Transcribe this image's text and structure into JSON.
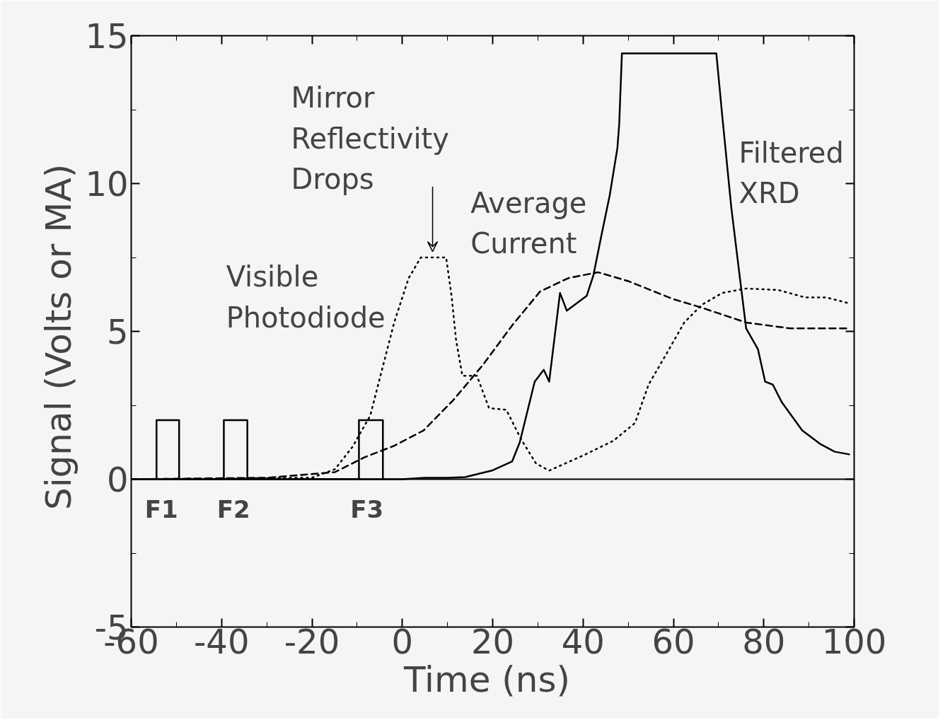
{
  "chart_data": {
    "type": "line",
    "xlabel": "Time  (ns)",
    "ylabel": "Signal  (Volts or MA)",
    "xlim": [
      -60,
      100
    ],
    "ylim": [
      -5,
      15
    ],
    "xticks": [
      -60,
      -40,
      -20,
      0,
      20,
      40,
      60,
      80,
      100
    ],
    "yticks": [
      -5,
      0,
      5,
      10,
      15
    ],
    "grid": false,
    "marker": "none",
    "series": [
      {
        "color": "#000000",
        "line_style": "solid",
        "x": [
          -60,
          -40,
          -20,
          0,
          5,
          10,
          13.9,
          20,
          24.3,
          26,
          29.3,
          31.3,
          32.5,
          34.9,
          36.4,
          40.8,
          42.3,
          44,
          45.9,
          47.6,
          48,
          48.6,
          69.5,
          70.8,
          72.8,
          74.8,
          76.1,
          78.7,
          80.3,
          82,
          84,
          88.5,
          92.4,
          95.7,
          98.9
        ],
        "values": [
          0,
          0,
          0,
          0,
          0.05,
          0.05,
          0.07,
          0.3,
          0.6,
          1.25,
          3.3,
          3.7,
          3.3,
          6.3,
          5.7,
          6.2,
          6.9,
          8.2,
          9.6,
          11.2,
          12,
          14.4,
          14.4,
          12.3,
          9.2,
          6.7,
          5.1,
          4.4,
          3.3,
          3.2,
          2.6,
          1.65,
          1.2,
          0.93,
          0.84
        ]
      },
      {
        "color": "#000000",
        "line_style": "dashed",
        "x": [
          -60,
          -30,
          -14.9,
          -8.4,
          -1.8,
          4.7,
          11.2,
          17.8,
          24.3,
          30.5,
          36.7,
          43.3,
          50,
          59.8,
          66.3,
          76.1,
          85.9,
          98.3
        ],
        "values": [
          0,
          0.05,
          0.24,
          0.74,
          1.13,
          1.65,
          2.66,
          3.86,
          5.2,
          6.35,
          6.8,
          7,
          6.7,
          6.1,
          5.8,
          5.3,
          5.1,
          5.1
        ]
      },
      {
        "color": "#000000",
        "line_style": "dotted",
        "x": [
          -60,
          -20,
          -14.9,
          -11,
          -7.1,
          -4.5,
          -1.8,
          1.4,
          4.1,
          6.7,
          9.7,
          10.9,
          11.9,
          13.3,
          16.5,
          19.2,
          23,
          26.3,
          29.6,
          32.5,
          40,
          46.7,
          51.5,
          54.5,
          58.3,
          62.4,
          66.3,
          70.8,
          76.1,
          83.2,
          89.1,
          93.8,
          98.9
        ],
        "values": [
          0,
          0.05,
          0.34,
          1.1,
          2.15,
          3.7,
          5.3,
          6.8,
          7.5,
          7.5,
          7.5,
          6.2,
          4.7,
          3.5,
          3.5,
          2.4,
          2.35,
          1.35,
          0.53,
          0.29,
          0.8,
          1.3,
          1.9,
          3.2,
          4.2,
          5.3,
          5.9,
          6.3,
          6.45,
          6.4,
          6.15,
          6.15,
          5.95
        ]
      },
      {
        "color": "#000000",
        "line_style": "solid",
        "x": [
          -54.4,
          -54.4,
          -49.4,
          -49.4,
          -39.5,
          -39.5,
          -34.3,
          -34.3,
          -9.6,
          -9.6,
          -4.3,
          -4.3
        ],
        "values": [
          0,
          2,
          2,
          0,
          0,
          2,
          2,
          0,
          0,
          2,
          2,
          0
        ]
      }
    ],
    "ref_lines": [
      {
        "axis": "y",
        "value": 0,
        "color": "#000000"
      }
    ],
    "annotations": [
      "Visible\nPhotodiode",
      {
        "text": "Mirror\nReflectivity\nDrops",
        "x": 6.7,
        "y": 7.6
      },
      "Average\nCurrent",
      "Filtered XRD",
      "F1",
      "F2",
      "F3"
    ]
  }
}
